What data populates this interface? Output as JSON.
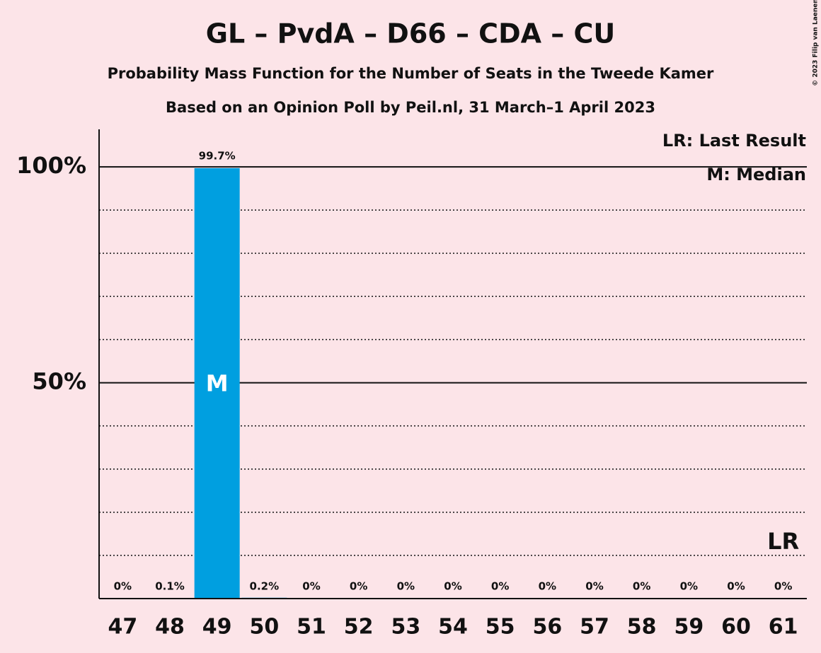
{
  "chart_data": {
    "type": "bar",
    "title": "GL – PvdA – D66 – CDA – CU",
    "subtitle": "Probability Mass Function for the Number of Seats in the Tweede Kamer",
    "source": "Based on an Opinion Poll by Peil.nl, 31 March–1 April 2023",
    "copyright": "© 2023 Filip van Laenen",
    "categories": [
      "47",
      "48",
      "49",
      "50",
      "51",
      "52",
      "53",
      "54",
      "55",
      "56",
      "57",
      "58",
      "59",
      "60",
      "61"
    ],
    "values": [
      0,
      0.1,
      99.7,
      0.2,
      0,
      0,
      0,
      0,
      0,
      0,
      0,
      0,
      0,
      0,
      0
    ],
    "value_labels": [
      "0%",
      "0.1%",
      "99.7%",
      "0.2%",
      "0%",
      "0%",
      "0%",
      "0%",
      "0%",
      "0%",
      "0%",
      "0%",
      "0%",
      "0%",
      "0%"
    ],
    "color": "#009fe0",
    "ylim": [
      0,
      108.7
    ],
    "yticks": [
      {
        "value": 50,
        "label": "50%"
      },
      {
        "value": 100,
        "label": "100%"
      }
    ],
    "minor_gridlines": [
      10,
      20,
      30,
      40,
      60,
      70,
      80,
      90
    ],
    "annotations": [
      {
        "text": "M",
        "category": "49"
      },
      {
        "text": "LR",
        "category": "61"
      }
    ],
    "legend_notes": [
      "LR: Last Result",
      "M: Median"
    ]
  }
}
